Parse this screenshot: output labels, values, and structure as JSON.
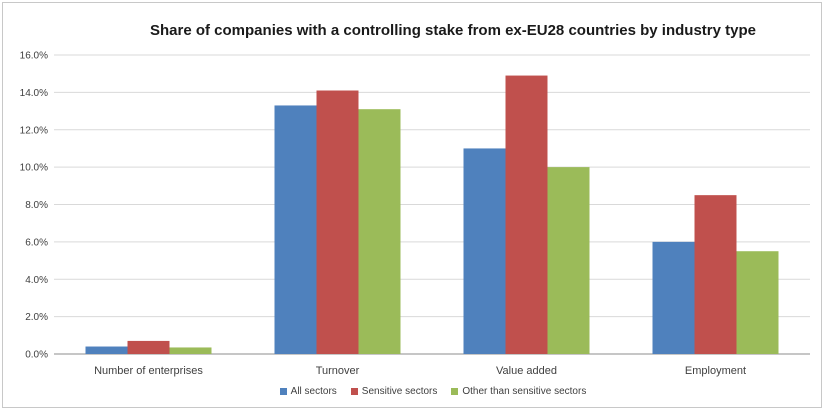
{
  "chart_data": {
    "type": "bar",
    "title": "Share of companies with a controlling stake from ex-EU28 countries by industry type",
    "categories": [
      "Number of enterprises",
      "Turnover",
      "Value added",
      "Employment"
    ],
    "series": [
      {
        "name": "All sectors",
        "values": [
          0.4,
          13.3,
          11.0,
          6.0
        ],
        "color": "#4f81bd"
      },
      {
        "name": "Sensitive sectors",
        "values": [
          0.7,
          14.1,
          14.9,
          8.5
        ],
        "color": "#c0504d"
      },
      {
        "name": "Other than sensitive sectors",
        "values": [
          0.35,
          13.1,
          10.0,
          5.5
        ],
        "color": "#9bbb59"
      }
    ],
    "ylim": [
      0,
      16
    ],
    "yticks": [
      "0.0%",
      "2.0%",
      "4.0%",
      "6.0%",
      "8.0%",
      "10.0%",
      "12.0%",
      "14.0%",
      "16.0%"
    ],
    "grid": "horizontal",
    "legend_position": "bottom"
  }
}
